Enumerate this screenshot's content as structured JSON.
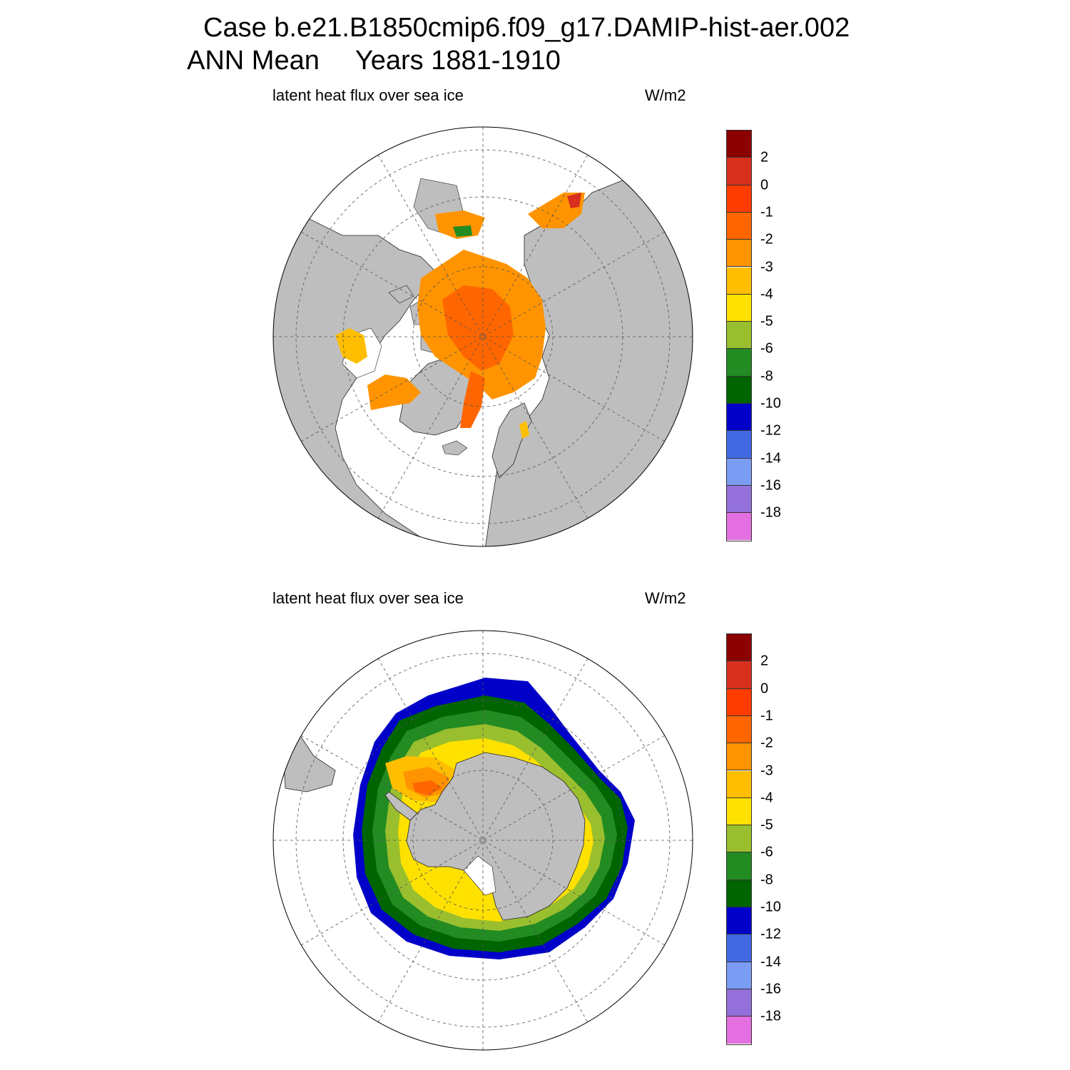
{
  "header": {
    "case_line": "Case b.e21.B1850cmip6.f09_g17.DAMIP-hist-aer.002",
    "period_label": "ANN Mean",
    "years_label": "Years 1881-1910"
  },
  "panels": [
    {
      "id": "north",
      "title": "latent heat flux over sea ice",
      "units": "W/m2",
      "hemisphere": "Northern"
    },
    {
      "id": "south",
      "title": "latent heat flux over sea ice",
      "units": "W/m2",
      "hemisphere": "Southern"
    }
  ],
  "colorbar": {
    "labels": [
      "2",
      "0",
      "-1",
      "-2",
      "-3",
      "-4",
      "-5",
      "-6",
      "-8",
      "-10",
      "-12",
      "-14",
      "-16",
      "-18"
    ],
    "colors_top_to_bottom": [
      "#8b0000",
      "#d7301f",
      "#ff3c00",
      "#ff6600",
      "#ff9400",
      "#ffbe00",
      "#ffe100",
      "#9abf2e",
      "#228b22",
      "#006400",
      "#0000c8",
      "#4169e1",
      "#7b9cf5",
      "#9370db",
      "#e36fe0"
    ]
  },
  "map_colors": {
    "land": "#bebebe",
    "ocean_nodata": "#ffffff",
    "grid": "#555555"
  }
}
